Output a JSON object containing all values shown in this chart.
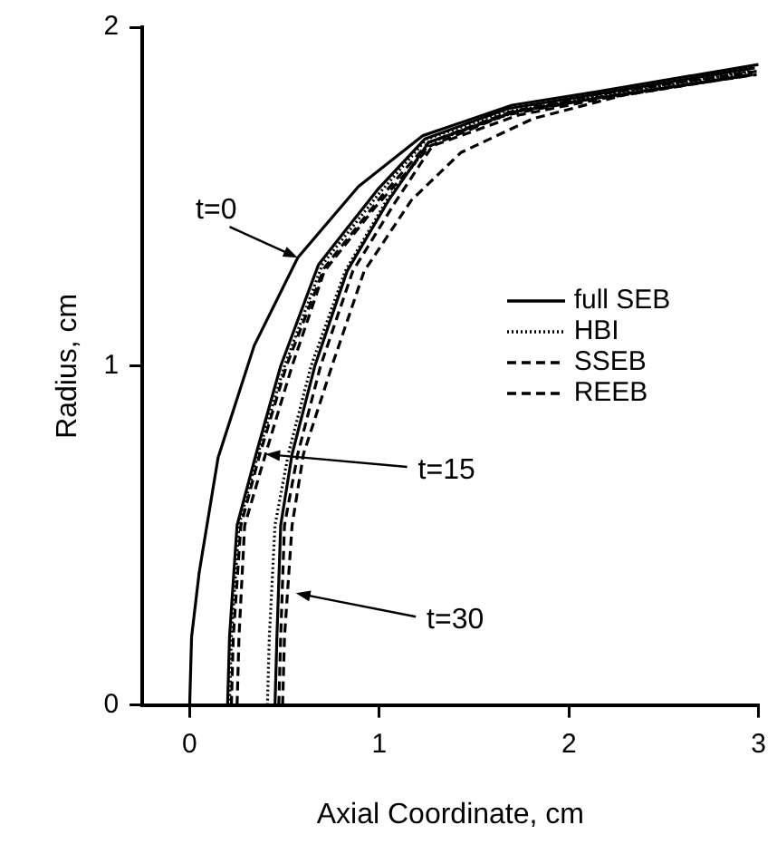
{
  "chart_data": {
    "type": "line",
    "xlabel": "Axial Coordinate, cm",
    "ylabel": "Radius, cm",
    "xlim": [
      -0.25,
      3
    ],
    "xticks": [
      0,
      1,
      2,
      3
    ],
    "ylim": [
      0,
      2
    ],
    "yticks": [
      0,
      1,
      2
    ],
    "legend": "right",
    "series": [
      {
        "name": "full SEB",
        "color": "#000000",
        "line_style": "solid",
        "x": [
          0.0,
          0.01,
          0.05,
          0.15,
          0.34,
          0.57,
          0.89,
          1.23,
          1.7,
          2.15,
          3.0
        ],
        "values": [
          0,
          0.2,
          0.39,
          0.73,
          1.06,
          1.32,
          1.53,
          1.68,
          1.77,
          1.81,
          1.89
        ]
      },
      {
        "color": "#000000",
        "line_style": "solid",
        "x": [
          0.2,
          0.21,
          0.25,
          0.35,
          0.48,
          0.68,
          0.99,
          1.24,
          1.68,
          2.12,
          2.98
        ],
        "values": [
          0,
          0.2,
          0.53,
          0.74,
          1.0,
          1.3,
          1.52,
          1.67,
          1.76,
          1.8,
          1.88
        ]
      },
      {
        "name": "HBI",
        "color": "#000000",
        "line_style": "dotted",
        "x": [
          0.21,
          0.22,
          0.26,
          0.36,
          0.5,
          0.7,
          1.0,
          1.25,
          1.67,
          2.11,
          2.97
        ],
        "values": [
          0,
          0.2,
          0.53,
          0.74,
          1.0,
          1.3,
          1.51,
          1.67,
          1.75,
          1.79,
          1.87
        ]
      },
      {
        "name": "SSEB",
        "color": "#000000",
        "line_style": "dashed",
        "x": [
          0.22,
          0.23,
          0.27,
          0.37,
          0.51,
          0.71,
          1.01,
          1.26,
          1.69,
          2.13,
          2.99
        ],
        "values": [
          0,
          0.2,
          0.53,
          0.74,
          1.0,
          1.29,
          1.5,
          1.66,
          1.75,
          1.8,
          1.87
        ]
      },
      {
        "name": "REEB",
        "color": "#000000",
        "line_style": "dashed",
        "x": [
          0.25,
          0.26,
          0.29,
          0.4,
          0.54,
          0.71,
          0.98,
          1.27,
          1.66,
          2.13,
          2.99
        ],
        "values": [
          0,
          0.2,
          0.53,
          0.74,
          1.0,
          1.28,
          1.47,
          1.65,
          1.74,
          1.79,
          1.86
        ]
      },
      {
        "color": "#000000",
        "line_style": "solid",
        "x": [
          0.45,
          0.46,
          0.48,
          0.54,
          0.66,
          0.83,
          1.05,
          1.26,
          1.71,
          2.14,
          2.96
        ],
        "values": [
          0,
          0.2,
          0.53,
          0.74,
          1.0,
          1.28,
          1.49,
          1.66,
          1.75,
          1.79,
          1.86
        ]
      },
      {
        "color": "#000000",
        "line_style": "dotted",
        "x": [
          0.41,
          0.42,
          0.45,
          0.52,
          0.64,
          0.82,
          1.04,
          1.27,
          1.72,
          2.16,
          2.95
        ],
        "values": [
          0,
          0.2,
          0.53,
          0.74,
          1.0,
          1.28,
          1.49,
          1.66,
          1.75,
          1.8,
          1.87
        ]
      },
      {
        "color": "#000000",
        "line_style": "dashed",
        "x": [
          0.47,
          0.48,
          0.5,
          0.57,
          0.69,
          0.86,
          1.08,
          1.28,
          1.73,
          2.18,
          2.97
        ],
        "values": [
          0,
          0.2,
          0.53,
          0.74,
          1.0,
          1.28,
          1.48,
          1.65,
          1.74,
          1.79,
          1.86
        ]
      },
      {
        "color": "#000000",
        "line_style": "dashed",
        "x": [
          0.49,
          0.5,
          0.54,
          0.6,
          0.75,
          0.92,
          1.17,
          1.43,
          1.81,
          2.29,
          2.96
        ],
        "values": [
          0,
          0.2,
          0.53,
          0.74,
          1.0,
          1.28,
          1.49,
          1.63,
          1.73,
          1.8,
          1.86
        ]
      }
    ],
    "annotations": [
      {
        "text": "t=0",
        "x": 0.57,
        "y": 1.32
      },
      {
        "text": "t=15",
        "x": 0.4,
        "y": 0.74
      },
      {
        "text": "t=30",
        "x": 0.56,
        "y": 0.33
      }
    ]
  }
}
